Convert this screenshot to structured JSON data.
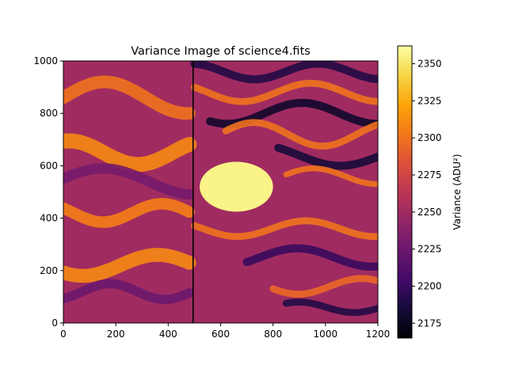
{
  "chart_data": {
    "type": "heatmap",
    "title": "Variance Image of science4.fits",
    "xlabel": "",
    "ylabel": "",
    "xlim": [
      0,
      1200
    ],
    "ylim": [
      0,
      1000
    ],
    "x_ticks": [
      0,
      200,
      400,
      600,
      800,
      1000,
      1200
    ],
    "y_ticks": [
      0,
      200,
      400,
      600,
      800,
      1000
    ],
    "colormap": "inferno",
    "grid": false,
    "colorbar": {
      "label": "Variance (ADU²)",
      "range": [
        2165,
        2362
      ],
      "ticks": [
        2175,
        2200,
        2225,
        2250,
        2275,
        2300,
        2325,
        2350
      ],
      "placement": "right"
    },
    "features": {
      "vertical_line_x": 495,
      "saturated_blob": {
        "x": 660,
        "y": 520,
        "rx": 140,
        "ry": 95,
        "value": 2362
      },
      "background_level": 2250,
      "dark_stripes_region": "upper-right"
    }
  }
}
